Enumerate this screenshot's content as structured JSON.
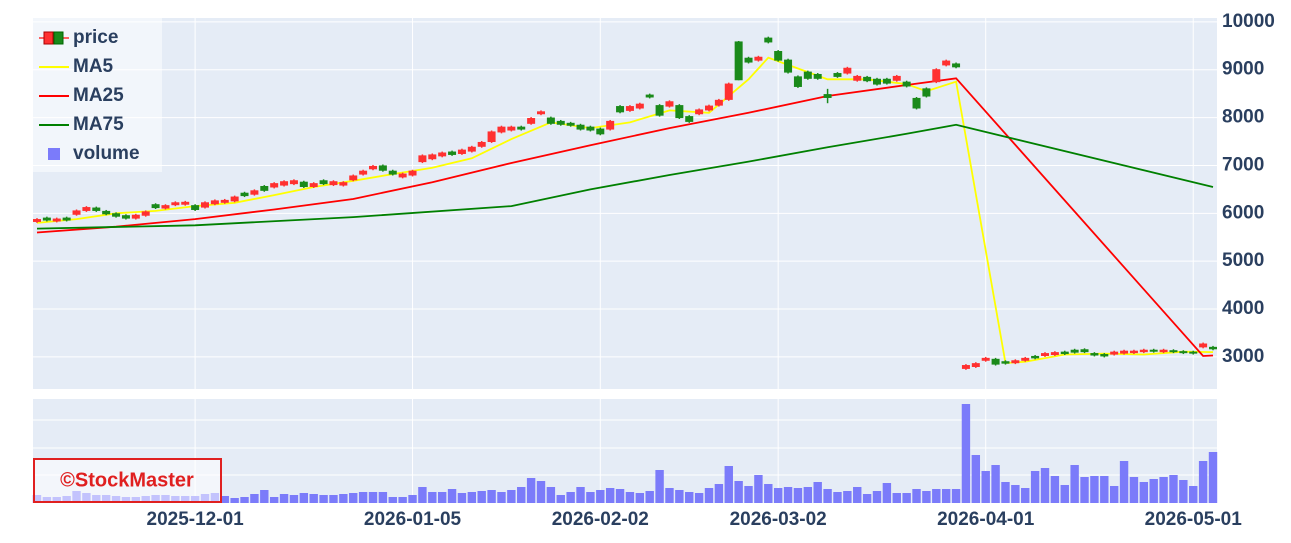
{
  "chart_data": {
    "type": "candlestick",
    "x": [
      "2025-11-06",
      "2025-11-07",
      "2025-11-10",
      "2025-11-11",
      "2025-11-12",
      "2025-11-13",
      "2025-11-14",
      "2025-11-17",
      "2025-11-18",
      "2025-11-19",
      "2025-11-20",
      "2025-11-21",
      "2025-11-25",
      "2025-11-26",
      "2025-11-27",
      "2025-11-28",
      "2025-12-01",
      "2025-12-02",
      "2025-12-03",
      "2025-12-04",
      "2025-12-05",
      "2025-12-08",
      "2025-12-09",
      "2025-12-10",
      "2025-12-11",
      "2025-12-12",
      "2025-12-15",
      "2025-12-16",
      "2025-12-17",
      "2025-12-18",
      "2025-12-19",
      "2025-12-22",
      "2025-12-23",
      "2025-12-24",
      "2025-12-25",
      "2025-12-26",
      "2025-12-29",
      "2025-12-30",
      "2026-01-05",
      "2026-01-06",
      "2026-01-07",
      "2026-01-08",
      "2026-01-09",
      "2026-01-13",
      "2026-01-14",
      "2026-01-15",
      "2026-01-16",
      "2026-01-19",
      "2026-01-20",
      "2026-01-21",
      "2026-01-22",
      "2026-01-23",
      "2026-01-26",
      "2026-01-27",
      "2026-01-28",
      "2026-01-29",
      "2026-01-30",
      "2026-02-02",
      "2026-02-03",
      "2026-02-04",
      "2026-02-05",
      "2026-02-06",
      "2026-02-09",
      "2026-02-10",
      "2026-02-12",
      "2026-02-13",
      "2026-02-16",
      "2026-02-17",
      "2026-02-18",
      "2026-02-19",
      "2026-02-20",
      "2026-02-24",
      "2026-02-25",
      "2026-02-26",
      "2026-02-27",
      "2026-03-02",
      "2026-03-03",
      "2026-03-04",
      "2026-03-05",
      "2026-03-06",
      "2026-03-09",
      "2026-03-10",
      "2026-03-11",
      "2026-03-12",
      "2026-03-13",
      "2026-03-16",
      "2026-03-17",
      "2026-03-18",
      "2026-03-19",
      "2026-03-23",
      "2026-03-24",
      "2026-03-25",
      "2026-03-26",
      "2026-03-27",
      "2026-03-30",
      "2026-03-31",
      "2026-04-01",
      "2026-04-02",
      "2026-04-03",
      "2026-04-06",
      "2026-04-07",
      "2026-04-08",
      "2026-04-09",
      "2026-04-10",
      "2026-04-13",
      "2026-04-14",
      "2026-04-15",
      "2026-04-16",
      "2026-04-17",
      "2026-04-20",
      "2026-04-21",
      "2026-04-22",
      "2026-04-23",
      "2026-04-24",
      "2026-04-27",
      "2026-04-28",
      "2026-04-30",
      "2026-05-01",
      "2026-05-07",
      "2026-05-08"
    ],
    "xticks": [
      "2025-12-01",
      "2026-01-05",
      "2026-02-02",
      "2026-03-02",
      "2026-04-01",
      "2026-05-01"
    ],
    "ylim": [
      2330,
      10080
    ],
    "yticks": [
      3000,
      4000,
      5000,
      6000,
      7000,
      8000,
      9000,
      10000
    ],
    "y2lim": [
      0,
      104
    ],
    "y2grid": [
      28,
      55,
      83
    ],
    "grid": true,
    "legend": "top-left",
    "watermark": "©StockMaster",
    "series": [
      {
        "name": "price",
        "type": "candlestick",
        "increasing_color": "#ff3030",
        "decreasing_color": "#1a8a1a",
        "open": [
          5830,
          5900,
          5840,
          5900,
          5980,
          6060,
          6110,
          6040,
          5990,
          5950,
          5900,
          5960,
          6180,
          6110,
          6180,
          6190,
          6160,
          6130,
          6200,
          6230,
          6260,
          6420,
          6400,
          6560,
          6550,
          6590,
          6620,
          6650,
          6560,
          6680,
          6600,
          6590,
          6700,
          6820,
          6930,
          6990,
          6880,
          6760,
          6800,
          7080,
          7140,
          7200,
          7280,
          7250,
          7300,
          7400,
          7500,
          7700,
          7740,
          7800,
          7880,
          8080,
          7990,
          7920,
          7880,
          7840,
          7800,
          7760,
          7760,
          8230,
          8150,
          8200,
          8470,
          8250,
          8240,
          8250,
          8020,
          8080,
          8160,
          8260,
          8380,
          9580,
          9240,
          9200,
          9660,
          9380,
          9200,
          8850,
          8950,
          8900,
          8480,
          8920,
          8930,
          8780,
          8840,
          8800,
          8800,
          8780,
          8740,
          8400,
          8600,
          8750,
          9100,
          9120,
          2760,
          2800,
          2930,
          2950,
          2900,
          2880,
          2930,
          3010,
          3030,
          3050,
          3100,
          3140,
          3150,
          3070,
          3050,
          3060,
          3080,
          3090,
          3110,
          3140,
          3110,
          3130,
          3110,
          3100,
          3210,
          3200
        ],
        "high": [
          5900,
          5930,
          5910,
          5930,
          6080,
          6150,
          6140,
          6070,
          6020,
          5980,
          5990,
          6060,
          6210,
          6190,
          6250,
          6260,
          6190,
          6250,
          6290,
          6300,
          6370,
          6450,
          6500,
          6590,
          6650,
          6690,
          6710,
          6680,
          6650,
          6710,
          6690,
          6670,
          6810,
          6910,
          7010,
          7020,
          6910,
          6850,
          6910,
          7230,
          7250,
          7290,
          7310,
          7350,
          7410,
          7510,
          7730,
          7830,
          7830,
          7830,
          8010,
          8150,
          8020,
          7950,
          7910,
          7870,
          7830,
          7790,
          7950,
          8260,
          8260,
          8310,
          8500,
          8280,
          8360,
          8280,
          8050,
          8190,
          8270,
          8390,
          8730,
          9600,
          9270,
          9290,
          9690,
          9410,
          9230,
          8880,
          8980,
          8930,
          8600,
          8950,
          9060,
          8890,
          8870,
          8830,
          8830,
          8890,
          8770,
          8430,
          8630,
          9030,
          9210,
          9150,
          2850,
          2890,
          3000,
          2980,
          2930,
          2950,
          3000,
          3040,
          3100,
          3120,
          3130,
          3170,
          3180,
          3100,
          3080,
          3130,
          3150,
          3150,
          3170,
          3170,
          3170,
          3160,
          3140,
          3130,
          3300,
          3230
        ],
        "low": [
          5800,
          5830,
          5810,
          5830,
          5950,
          6030,
          6030,
          5960,
          5910,
          5870,
          5870,
          5930,
          6090,
          6080,
          6150,
          6160,
          6050,
          6100,
          6170,
          6200,
          6230,
          6340,
          6370,
          6450,
          6520,
          6560,
          6590,
          6530,
          6530,
          6590,
          6570,
          6560,
          6670,
          6790,
          6900,
          6870,
          6790,
          6730,
          6770,
          7050,
          7110,
          7170,
          7200,
          7220,
          7270,
          7370,
          7470,
          7670,
          7710,
          7730,
          7850,
          8050,
          7850,
          7830,
          7810,
          7730,
          7710,
          7630,
          7730,
          8090,
          8120,
          8170,
          8400,
          8020,
          8210,
          7970,
          7890,
          8050,
          8130,
          8230,
          8350,
          8780,
          9130,
          9170,
          9550,
          9170,
          8920,
          8620,
          8790,
          8790,
          8300,
          8830,
          8900,
          8750,
          8740,
          8670,
          8690,
          8750,
          8630,
          8170,
          8420,
          8720,
          9070,
          9030,
          2730,
          2770,
          2900,
          2820,
          2840,
          2850,
          2900,
          2950,
          3000,
          3020,
          3040,
          3070,
          3080,
          3010,
          2990,
          3030,
          3050,
          3060,
          3080,
          3090,
          3080,
          3080,
          3060,
          3050,
          3180,
          3140
        ],
        "close": [
          5870,
          5860,
          5880,
          5860,
          6050,
          6120,
          6060,
          5990,
          5940,
          5900,
          5960,
          6030,
          6120,
          6160,
          6220,
          6230,
          6080,
          6220,
          6260,
          6270,
          6340,
          6370,
          6470,
          6480,
          6620,
          6660,
          6680,
          6560,
          6620,
          6620,
          6660,
          6640,
          6780,
          6880,
          6980,
          6900,
          6820,
          6820,
          6880,
          7200,
          7220,
          7260,
          7230,
          7320,
          7380,
          7480,
          7700,
          7800,
          7800,
          7760,
          7980,
          8120,
          7880,
          7860,
          7840,
          7760,
          7740,
          7660,
          7920,
          8120,
          8230,
          8280,
          8430,
          8050,
          8330,
          8000,
          7920,
          8160,
          8240,
          8360,
          8700,
          8790,
          9160,
          9260,
          9580,
          9200,
          8950,
          8650,
          8820,
          8820,
          8420,
          8860,
          9030,
          8860,
          8770,
          8700,
          8720,
          8860,
          8660,
          8200,
          8450,
          9000,
          9180,
          9060,
          2820,
          2860,
          2970,
          2850,
          2870,
          2920,
          2970,
          2980,
          3070,
          3090,
          3070,
          3100,
          3110,
          3040,
          3020,
          3100,
          3120,
          3120,
          3140,
          3120,
          3140,
          3110,
          3090,
          3080,
          3270,
          3170
        ]
      },
      {
        "name": "MA5",
        "type": "line",
        "color": "#ffff00",
        "x": [
          "2025-11-06",
          "2025-11-12",
          "2025-11-18",
          "2025-11-25",
          "2025-12-01",
          "2025-12-05",
          "2025-12-11",
          "2025-12-17",
          "2025-12-23",
          "2025-12-29",
          "2026-01-07",
          "2026-01-14",
          "2026-01-20",
          "2026-01-26",
          "2026-01-30",
          "2026-02-05",
          "2026-02-12",
          "2026-02-18",
          "2026-02-25",
          "2026-02-27",
          "2026-03-03",
          "2026-03-09",
          "2026-03-13",
          "2026-03-19",
          "2026-03-24",
          "2026-03-27",
          "2026-04-03",
          "2026-04-07",
          "2026-04-13",
          "2026-04-17",
          "2026-04-23",
          "2026-04-30",
          "2026-05-08"
        ],
        "values": [
          5800,
          5880,
          6000,
          6050,
          6150,
          6220,
          6380,
          6550,
          6680,
          6820,
          6950,
          7150,
          7550,
          7900,
          7780,
          7900,
          8150,
          8100,
          8800,
          9250,
          9100,
          8800,
          8800,
          8700,
          8550,
          8750,
          2870,
          2900,
          3050,
          3070,
          3050,
          3110,
          3100
        ]
      },
      {
        "name": "MA25",
        "type": "line",
        "color": "#ff0000",
        "x": [
          "2025-11-06",
          "2025-11-18",
          "2025-12-01",
          "2025-12-11",
          "2025-12-23",
          "2026-01-07",
          "2026-01-20",
          "2026-01-30",
          "2026-02-12",
          "2026-02-25",
          "2026-03-09",
          "2026-03-19",
          "2026-03-27",
          "2026-05-07",
          "2026-05-08"
        ],
        "values": [
          5600,
          5720,
          5880,
          6080,
          6300,
          6650,
          7050,
          7420,
          7780,
          8100,
          8450,
          8680,
          8820,
          3020,
          3030
        ]
      },
      {
        "name": "MA75",
        "type": "line",
        "color": "#008000",
        "x": [
          "2025-11-06",
          "2025-12-01",
          "2025-12-23",
          "2026-01-20",
          "2026-01-30",
          "2026-02-12",
          "2026-02-25",
          "2026-03-09",
          "2026-03-19",
          "2026-03-27",
          "2026-05-08"
        ],
        "values": [
          5680,
          5750,
          5920,
          6150,
          6500,
          6800,
          7080,
          7380,
          7660,
          7850,
          6550
        ]
      },
      {
        "name": "volume",
        "type": "bar",
        "axis": "y2",
        "color": "#7b7bfa",
        "values": [
          8,
          6,
          6,
          7,
          12,
          10,
          8,
          8,
          7,
          6,
          6,
          7,
          8,
          8,
          7,
          7,
          7,
          9,
          10,
          7,
          5,
          6,
          9,
          13,
          6,
          9,
          8,
          10,
          9,
          8,
          8,
          9,
          10,
          11,
          11,
          11,
          6,
          6,
          8,
          16,
          11,
          11,
          14,
          10,
          11,
          12,
          13,
          11,
          13,
          16,
          25,
          22,
          16,
          8,
          11,
          16,
          11,
          13,
          15,
          14,
          11,
          10,
          12,
          33,
          15,
          13,
          11,
          10,
          15,
          19,
          37,
          22,
          17,
          28,
          19,
          15,
          16,
          15,
          16,
          21,
          14,
          11,
          12,
          16,
          9,
          12,
          20,
          10,
          10,
          14,
          12,
          14,
          14,
          14,
          99,
          48,
          32,
          38,
          21,
          18,
          15,
          32,
          35,
          27,
          18,
          38,
          26,
          27,
          27,
          17,
          42,
          26,
          21,
          24,
          26,
          28,
          23,
          17,
          42,
          51
        ]
      }
    ]
  }
}
